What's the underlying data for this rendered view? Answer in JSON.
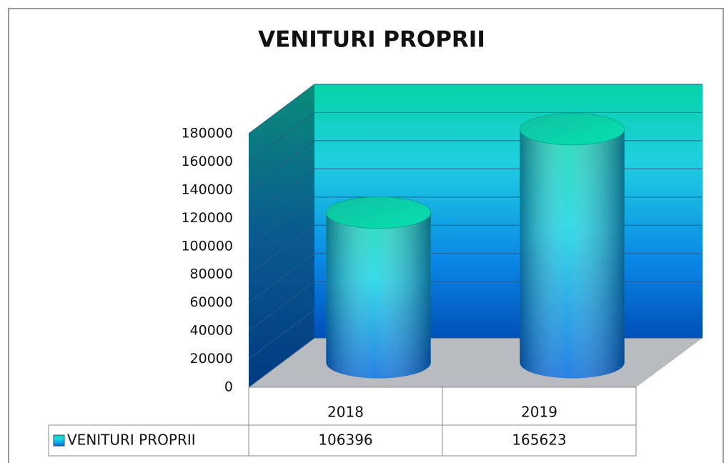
{
  "chart_data": {
    "type": "bar",
    "title": "VENITURI PROPRII",
    "categories": [
      "2018",
      "2019"
    ],
    "series": [
      {
        "name": "VENITURI PROPRII",
        "color": "#1a9be0",
        "values": [
          106396,
          165623
        ]
      }
    ],
    "ylim": [
      0,
      180000
    ],
    "yticks": [
      0,
      20000,
      40000,
      60000,
      80000,
      100000,
      120000,
      140000,
      160000,
      180000
    ],
    "grid": true
  }
}
